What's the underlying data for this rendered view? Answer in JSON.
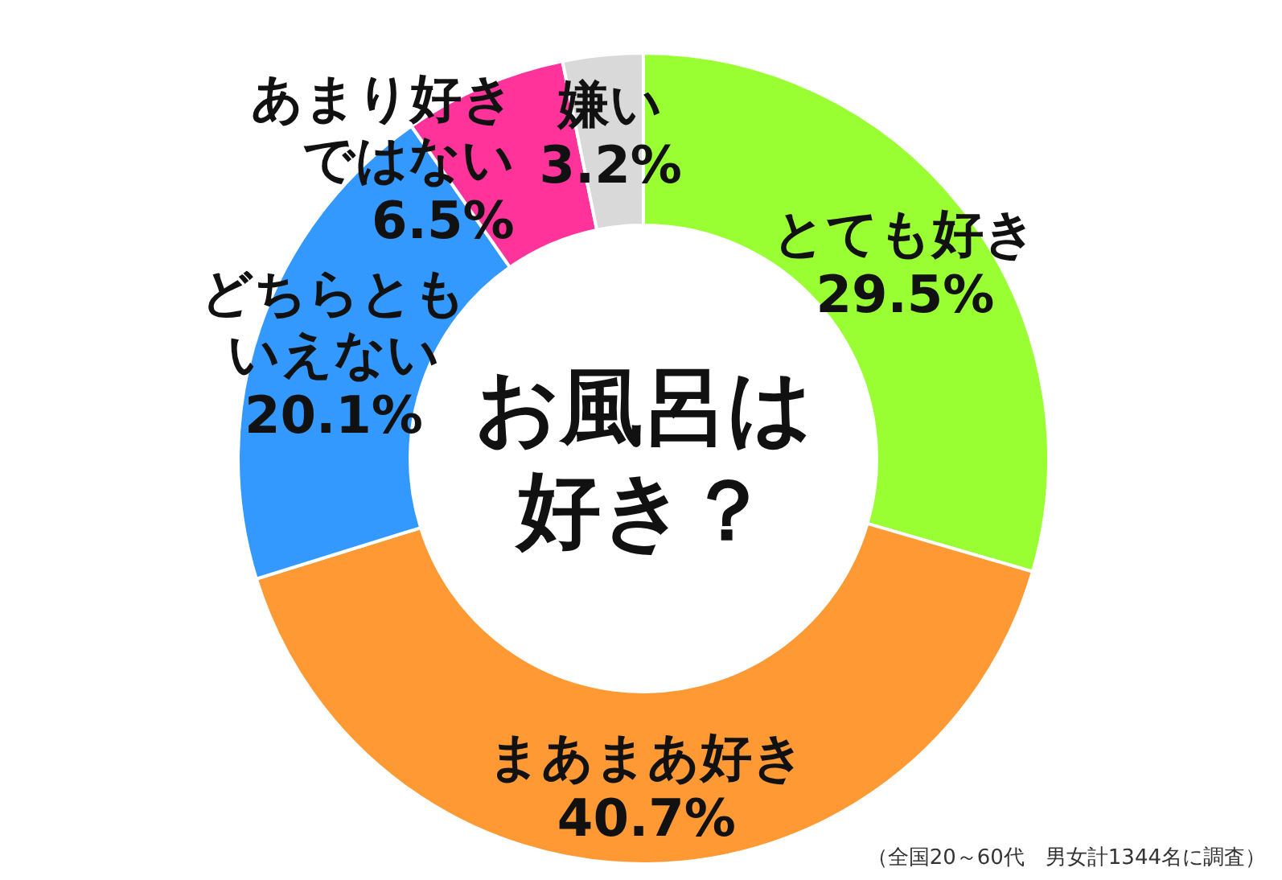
{
  "chart_data": {
    "type": "donut",
    "title": "お風呂は好き？",
    "categories": [
      "とても好き",
      "まあまあ好き",
      "どちらともいえない",
      "あまり好きではない",
      "嫌い"
    ],
    "values": [
      29.5,
      40.7,
      20.1,
      6.5,
      3.2
    ],
    "colors": [
      "#99ff33",
      "#ff9933",
      "#3399ff",
      "#ff3399",
      "#d9d9d9"
    ],
    "value_labels": [
      "29.5%",
      "40.7%",
      "20.1%",
      "6.5%",
      "3.2%"
    ],
    "annotations": [
      "（全国20～60代　男女計1344名に調査）"
    ]
  }
}
